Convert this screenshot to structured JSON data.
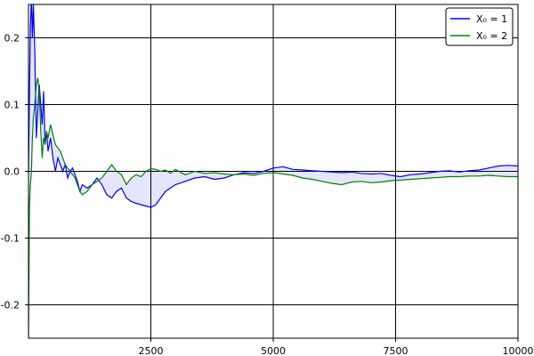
{
  "chart_data": {
    "type": "line",
    "title": "",
    "xlabel": "",
    "ylabel": "",
    "xlim": [
      0,
      10000
    ],
    "ylim": [
      -0.25,
      0.25
    ],
    "xticks": [
      2500,
      5000,
      7500,
      10000
    ],
    "xtick_labels": [
      "2500",
      "5000",
      "7500",
      "10000"
    ],
    "yticks": [
      -0.2,
      -0.1,
      0.0,
      0.1,
      0.2
    ],
    "ytick_labels": [
      "-0.2",
      "-0.1",
      "0.0",
      "0.1",
      "0.2"
    ],
    "grid": true,
    "legend_position": "top-right",
    "fill_between": {
      "series": [
        0,
        1
      ],
      "color": "#0000ff",
      "opacity": 0.1
    },
    "series": [
      {
        "name": "X₀ = 1",
        "color": "#0000ff",
        "points": [
          [
            0,
            0.0
          ],
          [
            20,
            0.12
          ],
          [
            40,
            0.22
          ],
          [
            60,
            0.26
          ],
          [
            80,
            0.2
          ],
          [
            100,
            0.25
          ],
          [
            130,
            0.18
          ],
          [
            160,
            0.05
          ],
          [
            190,
            0.09
          ],
          [
            220,
            0.13
          ],
          [
            250,
            0.1
          ],
          [
            280,
            0.07
          ],
          [
            310,
            0.12
          ],
          [
            340,
            0.04
          ],
          [
            370,
            0.06
          ],
          [
            400,
            0.03
          ],
          [
            450,
            0.05
          ],
          [
            500,
            0.02
          ],
          [
            550,
            0.0
          ],
          [
            600,
            0.02
          ],
          [
            650,
            0.01
          ],
          [
            700,
            0.0
          ],
          [
            750,
            0.01
          ],
          [
            800,
            -0.01
          ],
          [
            850,
            0.0
          ],
          [
            900,
            0.005
          ],
          [
            950,
            -0.005
          ],
          [
            1000,
            -0.015
          ],
          [
            1050,
            -0.03
          ],
          [
            1100,
            -0.02
          ],
          [
            1200,
            -0.025
          ],
          [
            1300,
            -0.02
          ],
          [
            1400,
            -0.01
          ],
          [
            1500,
            -0.02
          ],
          [
            1600,
            -0.035
          ],
          [
            1700,
            -0.04
          ],
          [
            1800,
            -0.03
          ],
          [
            1900,
            -0.025
          ],
          [
            2000,
            -0.04
          ],
          [
            2100,
            -0.045
          ],
          [
            2200,
            -0.048
          ],
          [
            2300,
            -0.05
          ],
          [
            2400,
            -0.052
          ],
          [
            2500,
            -0.054
          ],
          [
            2600,
            -0.05
          ],
          [
            2700,
            -0.04
          ],
          [
            2800,
            -0.03
          ],
          [
            2900,
            -0.025
          ],
          [
            3000,
            -0.02
          ],
          [
            3200,
            -0.015
          ],
          [
            3400,
            -0.01
          ],
          [
            3600,
            -0.008
          ],
          [
            3800,
            -0.012
          ],
          [
            4000,
            -0.01
          ],
          [
            4200,
            -0.005
          ],
          [
            4400,
            -0.002
          ],
          [
            4600,
            -0.003
          ],
          [
            4800,
            0.0
          ],
          [
            5000,
            0.005
          ],
          [
            5200,
            0.007
          ],
          [
            5400,
            0.003
          ],
          [
            5600,
            0.002
          ],
          [
            5800,
            0.001
          ],
          [
            6000,
            0.0
          ],
          [
            6200,
            -0.001
          ],
          [
            6400,
            -0.002
          ],
          [
            6600,
            -0.001
          ],
          [
            6800,
            -0.003
          ],
          [
            7000,
            -0.004
          ],
          [
            7200,
            -0.003
          ],
          [
            7400,
            -0.006
          ],
          [
            7600,
            -0.008
          ],
          [
            7800,
            -0.005
          ],
          [
            8000,
            -0.004
          ],
          [
            8200,
            -0.002
          ],
          [
            8400,
            0.0
          ],
          [
            8600,
            0.001
          ],
          [
            8800,
            -0.001
          ],
          [
            9000,
            0.001
          ],
          [
            9200,
            0.002
          ],
          [
            9400,
            0.005
          ],
          [
            9600,
            0.008
          ],
          [
            9800,
            0.009
          ],
          [
            10000,
            0.008
          ]
        ]
      },
      {
        "name": "X₀ = 2",
        "color": "#008000",
        "points": [
          [
            0,
            -0.25
          ],
          [
            20,
            -0.05
          ],
          [
            40,
            -0.02
          ],
          [
            60,
            0.0
          ],
          [
            80,
            0.05
          ],
          [
            100,
            0.08
          ],
          [
            130,
            0.1
          ],
          [
            160,
            0.13
          ],
          [
            190,
            0.14
          ],
          [
            220,
            0.12
          ],
          [
            250,
            0.06
          ],
          [
            280,
            0.02
          ],
          [
            310,
            0.05
          ],
          [
            340,
            0.04
          ],
          [
            370,
            0.06
          ],
          [
            400,
            0.05
          ],
          [
            450,
            0.07
          ],
          [
            500,
            0.055
          ],
          [
            550,
            0.04
          ],
          [
            600,
            0.035
          ],
          [
            650,
            0.03
          ],
          [
            700,
            0.02
          ],
          [
            750,
            0.01
          ],
          [
            800,
            0.005
          ],
          [
            850,
            0.0
          ],
          [
            900,
            -0.005
          ],
          [
            950,
            -0.01
          ],
          [
            1000,
            -0.02
          ],
          [
            1050,
            -0.03
          ],
          [
            1100,
            -0.035
          ],
          [
            1200,
            -0.03
          ],
          [
            1300,
            -0.02
          ],
          [
            1400,
            -0.015
          ],
          [
            1500,
            -0.01
          ],
          [
            1600,
            0.0
          ],
          [
            1700,
            0.01
          ],
          [
            1800,
            0.0
          ],
          [
            1900,
            -0.005
          ],
          [
            2000,
            -0.02
          ],
          [
            2100,
            -0.01
          ],
          [
            2200,
            -0.005
          ],
          [
            2300,
            -0.008
          ],
          [
            2400,
            0.0
          ],
          [
            2500,
            0.004
          ],
          [
            2600,
            0.003
          ],
          [
            2700,
            0.0
          ],
          [
            2800,
            0.002
          ],
          [
            2900,
            -0.003
          ],
          [
            3000,
            0.003
          ],
          [
            3200,
            -0.005
          ],
          [
            3400,
            0.0
          ],
          [
            3600,
            -0.003
          ],
          [
            3800,
            -0.002
          ],
          [
            4000,
            -0.004
          ],
          [
            4200,
            -0.005
          ],
          [
            4400,
            -0.004
          ],
          [
            4600,
            -0.006
          ],
          [
            4800,
            -0.003
          ],
          [
            5000,
            -0.002
          ],
          [
            5200,
            -0.004
          ],
          [
            5400,
            -0.006
          ],
          [
            5600,
            -0.01
          ],
          [
            5800,
            -0.012
          ],
          [
            6000,
            -0.015
          ],
          [
            6200,
            -0.018
          ],
          [
            6400,
            -0.02
          ],
          [
            6600,
            -0.016
          ],
          [
            6800,
            -0.015
          ],
          [
            7000,
            -0.017
          ],
          [
            7200,
            -0.016
          ],
          [
            7400,
            -0.014
          ],
          [
            7600,
            -0.013
          ],
          [
            7800,
            -0.012
          ],
          [
            8000,
            -0.011
          ],
          [
            8200,
            -0.01
          ],
          [
            8400,
            -0.009
          ],
          [
            8600,
            -0.008
          ],
          [
            8800,
            -0.008
          ],
          [
            9000,
            -0.007
          ],
          [
            9200,
            -0.007
          ],
          [
            9400,
            -0.006
          ],
          [
            9600,
            -0.007
          ],
          [
            9800,
            -0.008
          ],
          [
            10000,
            -0.008
          ]
        ]
      }
    ]
  }
}
